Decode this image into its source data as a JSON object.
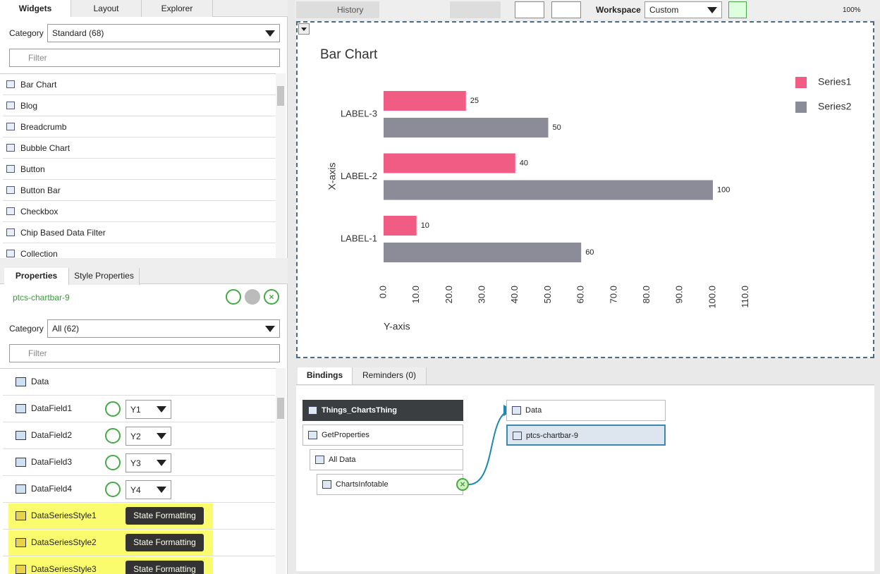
{
  "left_tabs": [
    "Widgets",
    "Layout",
    "Explorer"
  ],
  "widgets": {
    "category_label": "Category",
    "category": "Standard (68)",
    "filter": "Filter",
    "items": [
      "Bar Chart",
      "Blog",
      "Breadcrumb",
      "Bubble Chart",
      "Button",
      "Button Bar",
      "Checkbox",
      "Chip Based Data Filter",
      "Collection"
    ]
  },
  "properties_tabs": [
    "Properties",
    "Style Properties"
  ],
  "properties": {
    "widget_id": "ptcs-chartbar-9",
    "category_label": "Category",
    "category": "All (62)",
    "filter": "Filter",
    "rows": [
      {
        "name": "Data"
      },
      {
        "name": "DataField1",
        "value": "Y1"
      },
      {
        "name": "DataField2",
        "value": "Y2"
      },
      {
        "name": "DataField3",
        "value": "Y3"
      },
      {
        "name": "DataField4",
        "value": "Y4"
      },
      {
        "name": "DataSeriesStyle1",
        "value": "State Formatting"
      },
      {
        "name": "DataSeriesStyle2",
        "value": "State Formatting"
      },
      {
        "name": "DataSeriesStyle3",
        "value": "State Formatting"
      }
    ]
  },
  "toolbar": {
    "history": "History",
    "workspace_label": "Workspace",
    "workspace": "Custom",
    "zoom": "100%"
  },
  "chart_data": {
    "type": "bar",
    "orientation": "horizontal",
    "title": "Bar Chart",
    "x_label": "X-axis",
    "y_label": "Y-axis",
    "categories": [
      "LABEL-1",
      "LABEL-2",
      "LABEL-3"
    ],
    "series": [
      {
        "name": "Series1",
        "color": "#f05c84",
        "values": [
          10,
          40,
          25
        ]
      },
      {
        "name": "Series2",
        "color": "#8c8c98",
        "values": [
          60,
          100,
          50
        ]
      }
    ],
    "xlim": [
      0,
      110
    ],
    "xticks": [
      {
        "value": 0,
        "label": "0.0"
      },
      {
        "value": 10,
        "label": "10.0"
      },
      {
        "value": 20,
        "label": "20.0"
      },
      {
        "value": 30,
        "label": "30.0"
      },
      {
        "value": 40,
        "label": "40.0"
      },
      {
        "value": 50,
        "label": "50.0"
      },
      {
        "value": 60,
        "label": "60.0"
      },
      {
        "value": 70,
        "label": "70.0"
      },
      {
        "value": 80,
        "label": "80.0"
      },
      {
        "value": 90,
        "label": "90.0"
      },
      {
        "value": 100,
        "label": "100.0"
      },
      {
        "value": 110,
        "label": "110.0"
      }
    ],
    "grid": false,
    "legend": "top-right"
  },
  "bindings_tabs": [
    "Bindings",
    "Reminders (0)"
  ],
  "bindings": {
    "source": "Things_ChartsThing",
    "nodes": [
      "GetProperties",
      "All Data",
      "ChartsInfotable"
    ],
    "targets": [
      "Data",
      "ptcs-chartbar-9"
    ]
  }
}
